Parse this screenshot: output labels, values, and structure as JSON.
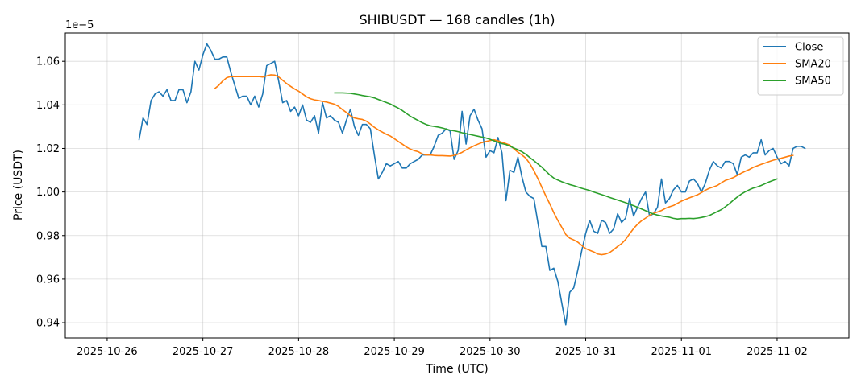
{
  "chart_data": {
    "type": "line",
    "title": "SHIBUSDT — 168 candles (1h)",
    "xlabel": "Time (UTC)",
    "ylabel": "Price (USDT)",
    "y_multiplier_label": "1e−5",
    "x_unit": "hours since 2025-10-26 00:00 UTC",
    "xlim": [
      -10.5,
      186
    ],
    "ylim": [
      0.933,
      1.073
    ],
    "x_ticks": [
      {
        "x": 0,
        "label": "2025-10-26"
      },
      {
        "x": 24,
        "label": "2025-10-27"
      },
      {
        "x": 48,
        "label": "2025-10-28"
      },
      {
        "x": 72,
        "label": "2025-10-29"
      },
      {
        "x": 96,
        "label": "2025-10-30"
      },
      {
        "x": 120,
        "label": "2025-10-31"
      },
      {
        "x": 144,
        "label": "2025-11-01"
      },
      {
        "x": 168,
        "label": "2025-11-02"
      }
    ],
    "y_ticks": [
      {
        "y": 0.94,
        "label": "0.94"
      },
      {
        "y": 0.96,
        "label": "0.96"
      },
      {
        "y": 0.98,
        "label": "0.98"
      },
      {
        "y": 1.0,
        "label": "1.00"
      },
      {
        "y": 1.02,
        "label": "1.02"
      },
      {
        "y": 1.04,
        "label": "1.04"
      },
      {
        "y": 1.06,
        "label": "1.06"
      }
    ],
    "grid": true,
    "legend_position": "top-right",
    "series": [
      {
        "name": "Close",
        "color": "#1f77b4",
        "x_start": 8,
        "values": [
          1.024,
          1.034,
          1.031,
          1.042,
          1.045,
          1.046,
          1.044,
          1.047,
          1.042,
          1.042,
          1.047,
          1.047,
          1.041,
          1.046,
          1.06,
          1.056,
          1.063,
          1.068,
          1.065,
          1.061,
          1.061,
          1.062,
          1.062,
          1.055,
          1.049,
          1.043,
          1.044,
          1.044,
          1.04,
          1.044,
          1.039,
          1.045,
          1.058,
          1.059,
          1.06,
          1.051,
          1.041,
          1.042,
          1.037,
          1.039,
          1.035,
          1.04,
          1.033,
          1.032,
          1.035,
          1.027,
          1.041,
          1.034,
          1.035,
          1.033,
          1.032,
          1.027,
          1.033,
          1.038,
          1.03,
          1.026,
          1.031,
          1.031,
          1.029,
          1.017,
          1.006,
          1.009,
          1.013,
          1.012,
          1.013,
          1.014,
          1.011,
          1.011,
          1.013,
          1.014,
          1.015,
          1.017,
          1.017,
          1.017,
          1.021,
          1.026,
          1.027,
          1.029,
          1.028,
          1.015,
          1.019,
          1.037,
          1.022,
          1.035,
          1.038,
          1.033,
          1.029,
          1.016,
          1.019,
          1.018,
          1.025,
          1.018,
          0.996,
          1.01,
          1.009,
          1.016,
          1.007,
          1.0,
          0.998,
          0.997,
          0.986,
          0.975,
          0.975,
          0.964,
          0.965,
          0.959,
          0.949,
          0.939,
          0.954,
          0.956,
          0.964,
          0.973,
          0.981,
          0.987,
          0.982,
          0.981,
          0.987,
          0.986,
          0.981,
          0.983,
          0.99,
          0.986,
          0.988,
          0.997,
          0.989,
          0.993,
          0.997,
          1.0,
          0.989,
          0.99,
          0.993,
          1.006,
          0.995,
          0.997,
          1.001,
          1.003,
          1.0,
          1.0,
          1.005,
          1.006,
          1.004,
          1.0,
          1.004,
          1.01,
          1.014,
          1.012,
          1.011,
          1.014,
          1.014,
          1.013,
          1.008,
          1.016,
          1.017,
          1.016,
          1.018,
          1.018,
          1.024,
          1.017,
          1.019,
          1.02,
          1.016,
          1.013,
          1.014,
          1.012,
          1.02,
          1.021,
          1.021,
          1.02
        ]
      },
      {
        "name": "SMA20",
        "color": "#ff7f0e",
        "x_start": 27,
        "values": [
          1.0475,
          1.049,
          1.051,
          1.0525,
          1.053,
          1.053,
          1.053,
          1.053,
          1.053,
          1.053,
          1.053,
          1.053,
          1.0528,
          1.0533,
          1.0538,
          1.0537,
          1.0528,
          1.0513,
          1.0498,
          1.0485,
          1.0473,
          1.0463,
          1.045,
          1.0437,
          1.0428,
          1.0423,
          1.042,
          1.0416,
          1.0413,
          1.0408,
          1.0403,
          1.0393,
          1.0378,
          1.0365,
          1.035,
          1.034,
          1.0336,
          1.0333,
          1.0325,
          1.0312,
          1.0297,
          1.0285,
          1.0275,
          1.0265,
          1.0257,
          1.0245,
          1.0232,
          1.022,
          1.0207,
          1.0197,
          1.019,
          1.0185,
          1.0175,
          1.017,
          1.017,
          1.0168,
          1.0167,
          1.0167,
          1.0166,
          1.0165,
          1.0168,
          1.0174,
          1.0182,
          1.0193,
          1.0203,
          1.0212,
          1.022,
          1.0227,
          1.0232,
          1.0236,
          1.024,
          1.0235,
          1.0228,
          1.0222,
          1.0215,
          1.0198,
          1.0183,
          1.017,
          1.0155,
          1.013,
          1.0098,
          1.0062,
          1.0022,
          0.9982,
          0.9945,
          0.9905,
          0.987,
          0.9838,
          0.9805,
          0.9788,
          0.978,
          0.977,
          0.9755,
          0.974,
          0.9732,
          0.9725,
          0.9715,
          0.9712,
          0.9715,
          0.9722,
          0.9735,
          0.975,
          0.9763,
          0.9782,
          0.9808,
          0.9832,
          0.9852,
          0.9868,
          0.988,
          0.9893,
          0.9902,
          0.9908,
          0.9915,
          0.9925,
          0.9932,
          0.9938,
          0.9948,
          0.9958,
          0.9966,
          0.9973,
          0.998,
          0.9987,
          0.9997,
          1.0008,
          1.0017,
          1.0023,
          1.003,
          1.0042,
          1.0053,
          1.0059,
          1.0066,
          1.0076,
          1.0086,
          1.0095,
          1.0103,
          1.0113,
          1.012,
          1.0127,
          1.0133,
          1.014,
          1.0146,
          1.0151,
          1.0155,
          1.016,
          1.0165,
          1.0168
        ]
      },
      {
        "name": "SMA50",
        "color": "#2ca02c",
        "x_start": 57,
        "values": [
          1.0455,
          1.0455,
          1.0455,
          1.0454,
          1.0453,
          1.045,
          1.0447,
          1.0443,
          1.044,
          1.0437,
          1.0432,
          1.0425,
          1.0418,
          1.0411,
          1.0404,
          1.0394,
          1.0385,
          1.0374,
          1.0361,
          1.0348,
          1.0338,
          1.0328,
          1.0318,
          1.031,
          1.0304,
          1.0301,
          1.0298,
          1.0294,
          1.0289,
          1.0284,
          1.0281,
          1.0277,
          1.0272,
          1.0268,
          1.0264,
          1.026,
          1.0256,
          1.0252,
          1.0248,
          1.0242,
          1.0235,
          1.0228,
          1.0222,
          1.0218,
          1.021,
          1.0202,
          1.0194,
          1.0185,
          1.0173,
          1.0158,
          1.0144,
          1.0129,
          1.0114,
          1.0096,
          1.0078,
          1.0064,
          1.0055,
          1.0047,
          1.004,
          1.0034,
          1.0029,
          1.0023,
          1.0017,
          1.0012,
          1.0007,
          1.0,
          0.9994,
          0.9988,
          0.9982,
          0.9975,
          0.9969,
          0.9963,
          0.9957,
          0.9951,
          0.9944,
          0.9937,
          0.993,
          0.9922,
          0.9914,
          0.9906,
          0.9899,
          0.9894,
          0.989,
          0.9887,
          0.9884,
          0.9879,
          0.9876,
          0.9878,
          0.9878,
          0.9879,
          0.9878,
          0.988,
          0.9883,
          0.9887,
          0.9892,
          0.9901,
          0.991,
          0.9919,
          0.9932,
          0.9946,
          0.9962,
          0.9977,
          0.999,
          1.0001,
          1.001,
          1.0018,
          1.0023,
          1.003,
          1.0038,
          1.0046,
          1.0053,
          1.006
        ]
      }
    ]
  }
}
